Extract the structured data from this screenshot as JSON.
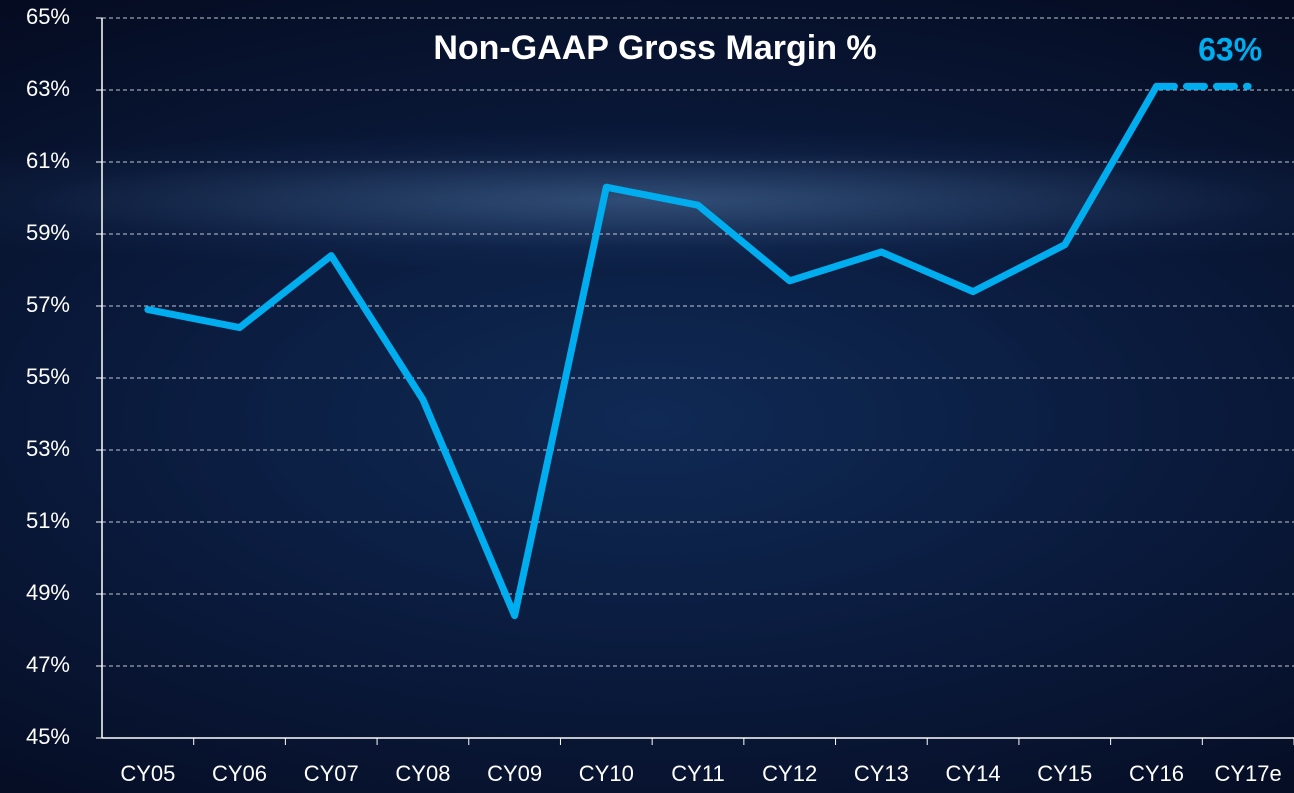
{
  "chart_data": {
    "type": "line",
    "title": "Non-GAAP Gross Margin %",
    "categories": [
      "CY05",
      "CY06",
      "CY07",
      "CY08",
      "CY09",
      "CY10",
      "CY11",
      "CY12",
      "CY13",
      "CY14",
      "CY15",
      "CY16",
      "CY17e"
    ],
    "series": [
      {
        "name": "Non-GAAP Gross Margin %",
        "color": "#00aeef",
        "values": [
          56.9,
          56.4,
          58.4,
          54.4,
          48.4,
          60.3,
          59.8,
          57.7,
          58.5,
          57.4,
          58.7,
          63.1,
          63.1
        ],
        "dash_from": 11
      }
    ],
    "annotation": {
      "text": "63%",
      "value": 63
    },
    "ylim": [
      45,
      65
    ],
    "yticks": [
      {
        "value": 45,
        "label": "45%"
      },
      {
        "value": 47,
        "label": "47%"
      },
      {
        "value": 49,
        "label": "49%"
      },
      {
        "value": 51,
        "label": "51%"
      },
      {
        "value": 53,
        "label": "53%"
      },
      {
        "value": 55,
        "label": "55%"
      },
      {
        "value": 57,
        "label": "57%"
      },
      {
        "value": 59,
        "label": "59%"
      },
      {
        "value": 61,
        "label": "61%"
      },
      {
        "value": 63,
        "label": "63%"
      },
      {
        "value": 65,
        "label": "65%"
      }
    ],
    "grid": true
  }
}
